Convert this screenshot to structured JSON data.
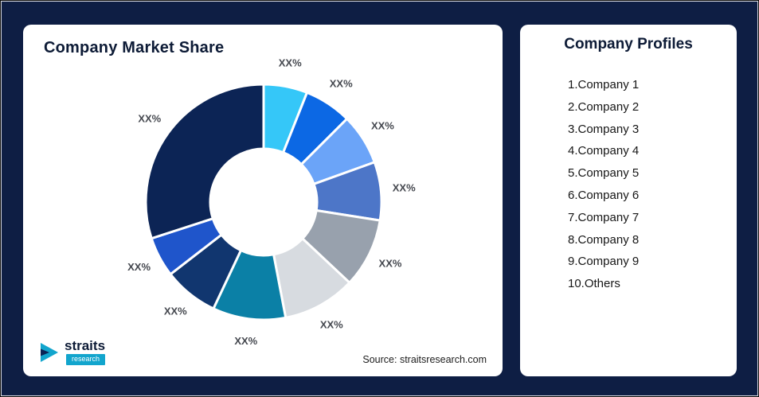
{
  "background": "#0e1e44",
  "left_card": {
    "title": "Company Market Share",
    "source_note": "Source: straitsresearch.com",
    "logo": {
      "brand": "straits",
      "sub_brand": "research"
    }
  },
  "right_card": {
    "title": "Company Profiles",
    "items": [
      "1.Company 1",
      "2.Company 2",
      "3.Company 3",
      "4.Company 4",
      "5.Company 5",
      "6.Company 6",
      "7.Company 7",
      "8.Company 8",
      "9.Company 9",
      "10.Others"
    ]
  },
  "chart_data": {
    "type": "pie",
    "variant": "donut",
    "title": "Company Market Share",
    "categories": [
      "Company 1",
      "Company 2",
      "Company 3",
      "Company 4",
      "Company 5",
      "Company 6",
      "Company 7",
      "Company 8",
      "Company 9",
      "Others"
    ],
    "values": [
      6,
      6.5,
      7,
      8,
      9.5,
      10,
      10,
      7.5,
      5.5,
      30
    ],
    "values_note": "angular fractions estimated from pixels; all data labels show placeholder XX%",
    "data_labels": [
      "XX%",
      "XX%",
      "XX%",
      "XX%",
      "XX%",
      "XX%",
      "XX%",
      "XX%",
      "XX%",
      "XX%"
    ],
    "colors": [
      "#35c7f8",
      "#0c68e4",
      "#6ba4f8",
      "#4d76c8",
      "#98a1ad",
      "#d7dbe0",
      "#0b80a6",
      "#11366f",
      "#1f55cb",
      "#0c2455"
    ],
    "slice_border_color": "#ffffff",
    "start_angle_deg": 0,
    "direction": "clockwise",
    "inner_radius_ratio": 0.45,
    "legend": "none"
  }
}
